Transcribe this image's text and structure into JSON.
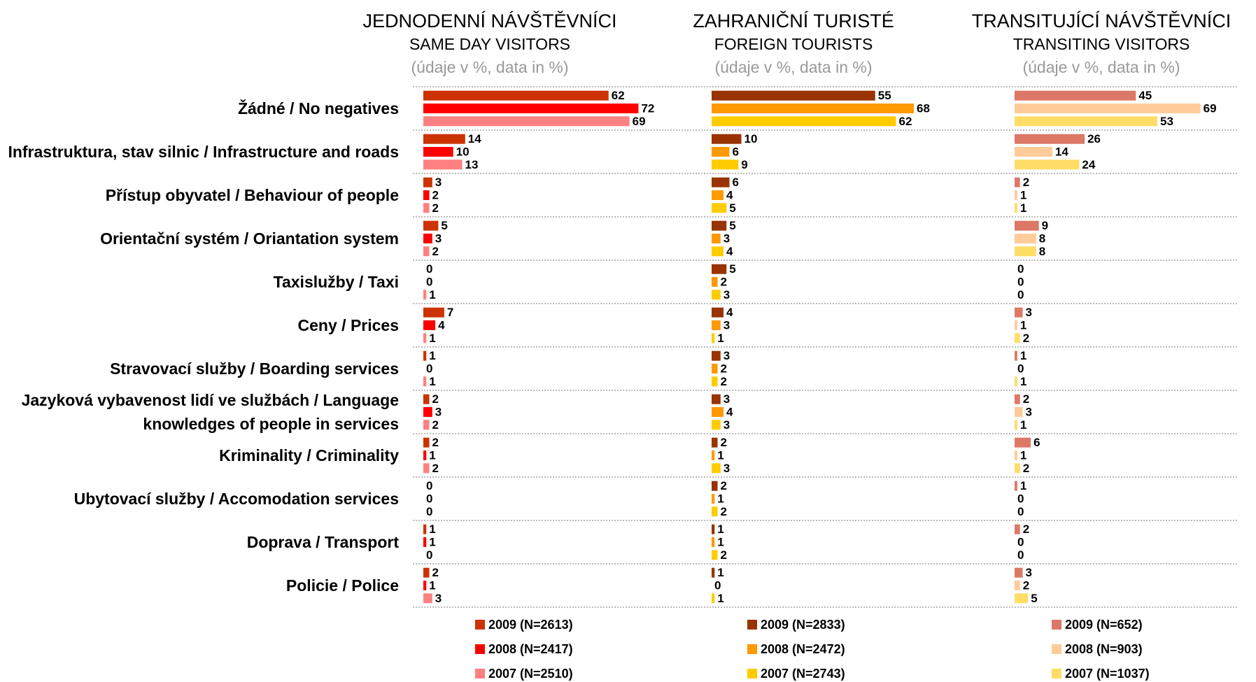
{
  "chart_data": [
    {
      "type": "bar",
      "title": "JEDNODENNÍ NÁVŠTĚVNÍCI",
      "subtitle": "SAME DAY VISITORS",
      "note": "(údaje v %, data in %)",
      "categories": [
        "Žádné / No negatives",
        "Infrastruktura, stav silnic / Infrastructure and roads",
        "Přístup obyvatel / Behaviour of people",
        "Orientační systém / Oriantation system",
        "Taxislužby / Taxi",
        "Ceny / Prices",
        "Stravovací služby / Boarding services",
        "Jazyková vybavenost lidí ve službách / Language knowledges of people in services",
        "Kriminality / Criminality",
        "Ubytovací služby / Accomodation services",
        "Doprava / Transport",
        "Policie / Police"
      ],
      "series": [
        {
          "name": "2009 (N=2613)",
          "color": "#cc3300",
          "values": [
            62,
            14,
            3,
            5,
            0,
            7,
            1,
            2,
            2,
            0,
            1,
            2
          ]
        },
        {
          "name": "2008 (N=2417)",
          "color": "#ff0000",
          "values": [
            72,
            10,
            2,
            3,
            0,
            4,
            0,
            3,
            1,
            0,
            1,
            1
          ]
        },
        {
          "name": "2007 (N=2510)",
          "color": "#ff8080",
          "values": [
            69,
            13,
            2,
            2,
            1,
            1,
            1,
            2,
            2,
            0,
            0,
            3
          ]
        }
      ]
    },
    {
      "type": "bar",
      "title": "ZAHRANIČNÍ TURISTÉ",
      "subtitle": "FOREIGN TOURISTS",
      "note": "(údaje v %, data in %)",
      "series": [
        {
          "name": "2009 (N=2833)",
          "color": "#993300",
          "values": [
            55,
            10,
            6,
            5,
            5,
            4,
            3,
            3,
            2,
            2,
            1,
            1
          ]
        },
        {
          "name": "2008 (N=2472)",
          "color": "#ff9900",
          "values": [
            68,
            6,
            4,
            3,
            2,
            3,
            2,
            4,
            1,
            1,
            1,
            0
          ]
        },
        {
          "name": "2007 (N=2743)",
          "color": "#ffcc00",
          "values": [
            62,
            9,
            5,
            4,
            3,
            1,
            2,
            3,
            3,
            2,
            2,
            1
          ]
        }
      ]
    },
    {
      "type": "bar",
      "title": "TRANSITUJÍCÍ NÁVŠTĚVNÍCI",
      "subtitle": "TRANSITING VISITORS",
      "note": "(údaje v %, data in %)",
      "series": [
        {
          "name": "2009 (N=652)",
          "color": "#dd7766",
          "values": [
            45,
            26,
            2,
            9,
            0,
            3,
            1,
            2,
            6,
            1,
            2,
            3
          ]
        },
        {
          "name": "2008 (N=903)",
          "color": "#ffcc99",
          "values": [
            69,
            14,
            1,
            8,
            0,
            1,
            0,
            3,
            1,
            0,
            0,
            2
          ]
        },
        {
          "name": "2007 (N=1037)",
          "color": "#ffdd66",
          "values": [
            53,
            24,
            1,
            8,
            0,
            2,
            1,
            1,
            2,
            0,
            0,
            5
          ]
        }
      ]
    }
  ]
}
